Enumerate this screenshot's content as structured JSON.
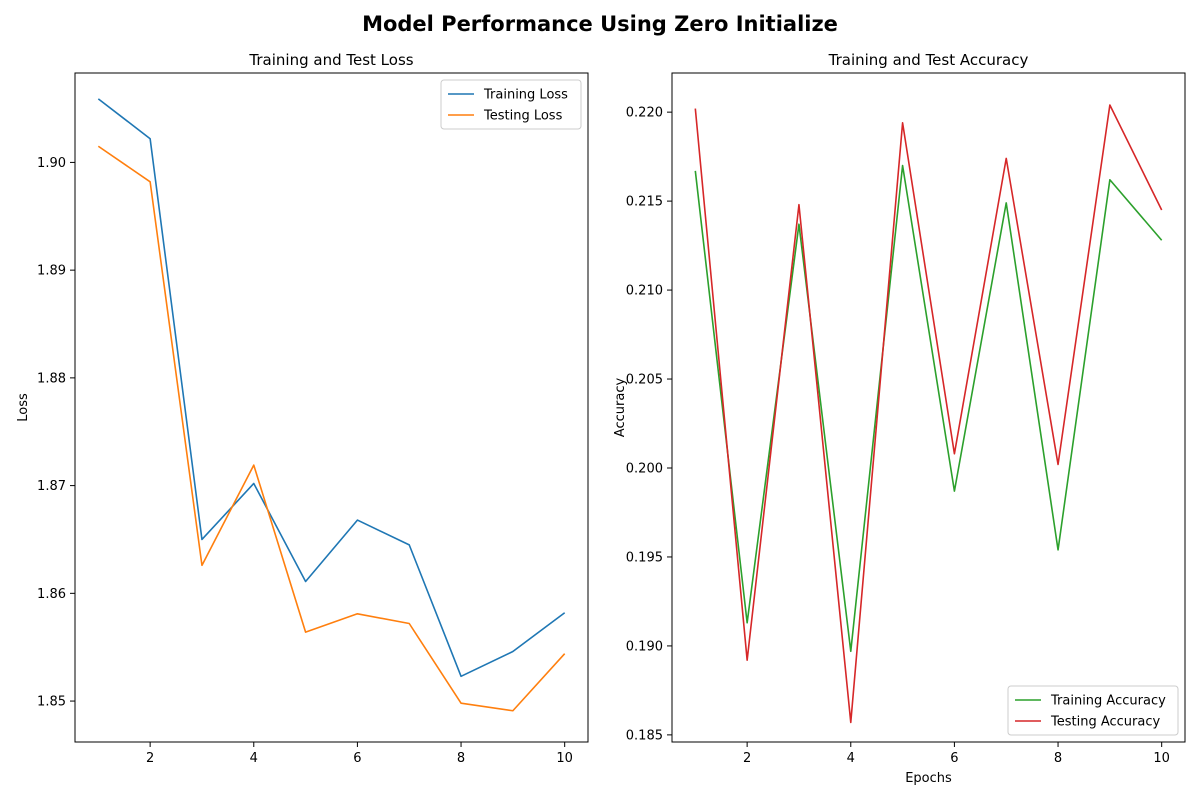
{
  "figure": {
    "suptitle": "Model Performance Using Zero Initialize"
  },
  "chart_data": [
    {
      "type": "line",
      "title": "Training and Test Loss",
      "xlabel": "",
      "ylabel": "Loss",
      "x": [
        1,
        2,
        3,
        4,
        5,
        6,
        7,
        8,
        9,
        10
      ],
      "xlim": [
        0.55,
        10.45
      ],
      "ylim": [
        1.8462,
        1.9083
      ],
      "xticks": [
        2,
        4,
        6,
        8,
        10
      ],
      "yticks": [
        1.85,
        1.86,
        1.87,
        1.88,
        1.89,
        1.9
      ],
      "ytick_labels": [
        "1.85",
        "1.86",
        "1.87",
        "1.88",
        "1.89",
        "1.90"
      ],
      "grid": false,
      "legend": "top-right",
      "series": [
        {
          "name": "Training Loss",
          "color": "#1f77b4",
          "values": [
            1.9059,
            1.9022,
            1.865,
            1.8702,
            1.8611,
            1.8668,
            1.8645,
            1.8523,
            1.8546,
            1.8582
          ]
        },
        {
          "name": "Testing Loss",
          "color": "#ff7f0e",
          "values": [
            1.9015,
            1.8982,
            1.8626,
            1.8719,
            1.8564,
            1.8581,
            1.8572,
            1.8498,
            1.8491,
            1.8544
          ]
        }
      ]
    },
    {
      "type": "line",
      "title": "Training and Test Accuracy",
      "xlabel": "Epochs",
      "ylabel": "Accuracy",
      "x": [
        1,
        2,
        3,
        4,
        5,
        6,
        7,
        8,
        9,
        10
      ],
      "xlim": [
        0.55,
        10.45
      ],
      "ylim": [
        0.1846,
        0.2222
      ],
      "xticks": [
        2,
        4,
        6,
        8,
        10
      ],
      "yticks": [
        0.185,
        0.19,
        0.195,
        0.2,
        0.205,
        0.21,
        0.215,
        0.22
      ],
      "ytick_labels": [
        "0.185",
        "0.190",
        "0.195",
        "0.200",
        "0.205",
        "0.210",
        "0.215",
        "0.220"
      ],
      "grid": false,
      "legend": "bottom-right",
      "series": [
        {
          "name": "Training Accuracy",
          "color": "#2ca02c",
          "values": [
            0.2167,
            0.1913,
            0.2137,
            0.1897,
            0.217,
            0.1987,
            0.2149,
            0.1954,
            0.2162,
            0.2128
          ]
        },
        {
          "name": "Testing Accuracy",
          "color": "#d62728",
          "values": [
            0.2202,
            0.1892,
            0.2148,
            0.1857,
            0.2194,
            0.2008,
            0.2174,
            0.2002,
            0.2204,
            0.2145
          ]
        }
      ]
    }
  ]
}
